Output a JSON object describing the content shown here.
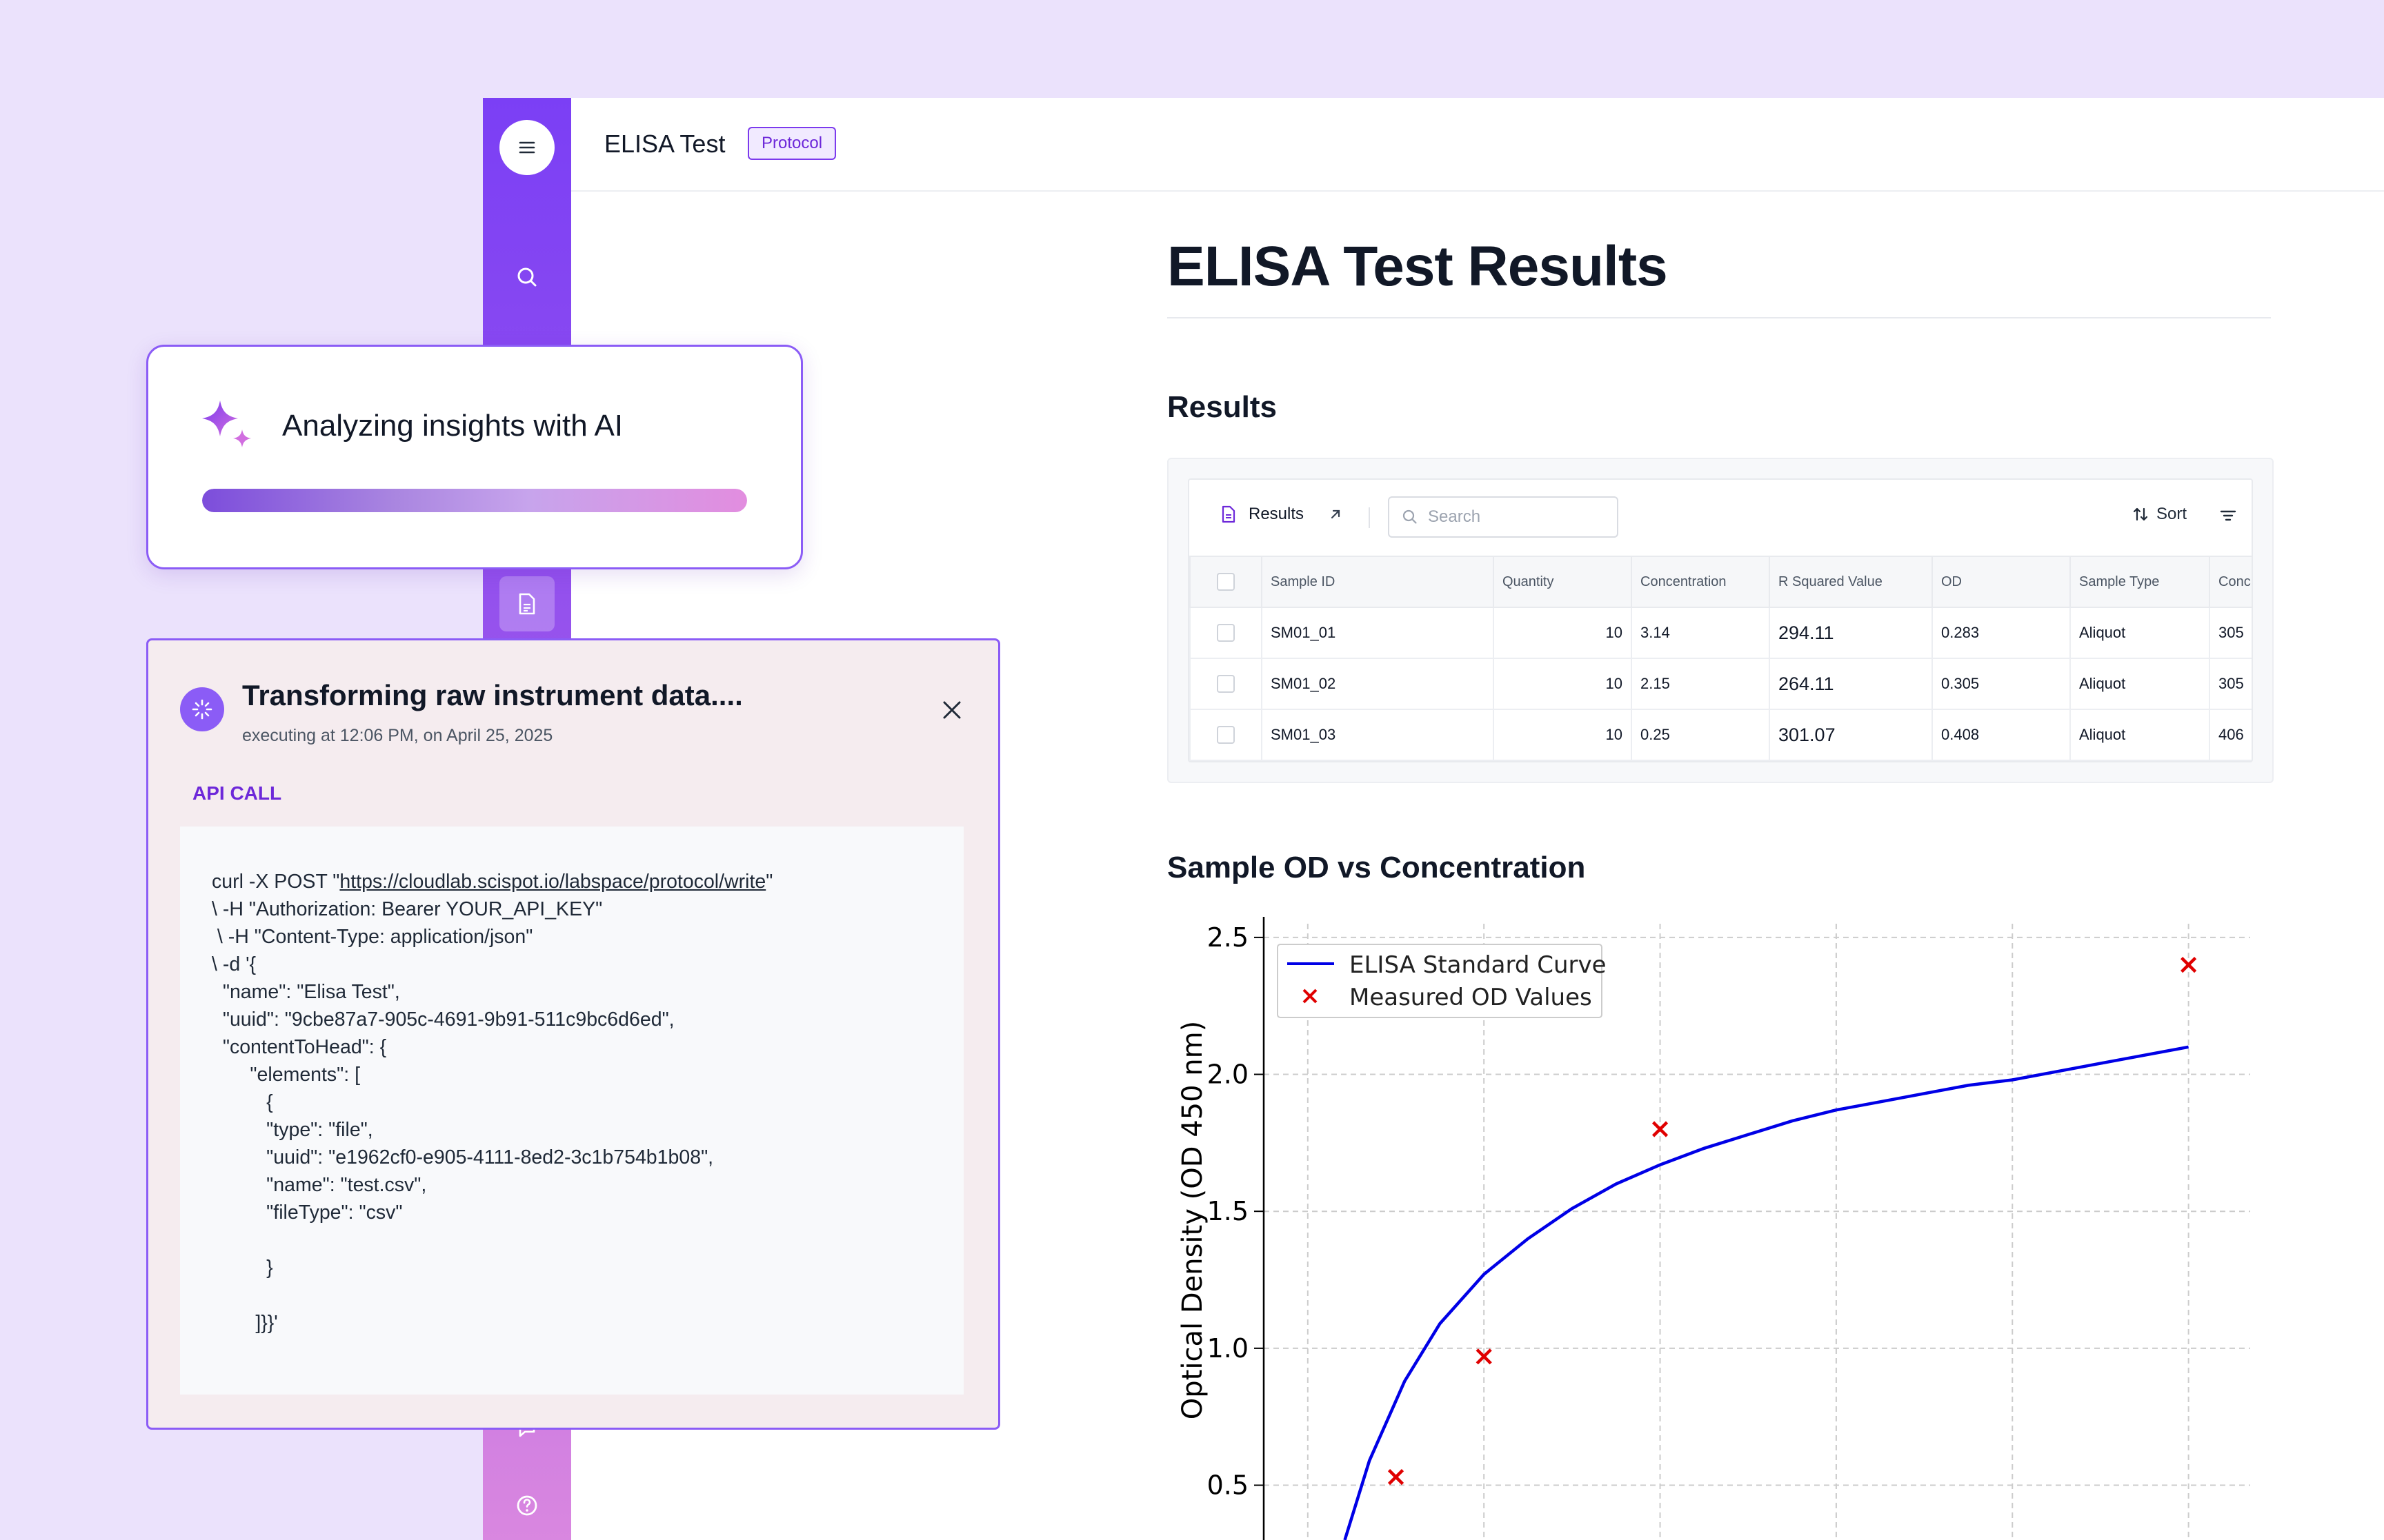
{
  "app": {
    "title": "ELISA Test",
    "badge": "Protocol",
    "accent_color": "#7c3aed"
  },
  "sidebar": {
    "items": [
      {
        "icon": "menu-icon"
      },
      {
        "icon": "search-icon"
      },
      {
        "icon": "document-icon"
      },
      {
        "icon": "chat-icon"
      },
      {
        "icon": "help-icon"
      }
    ]
  },
  "page": {
    "title": "ELISA Test Results",
    "results_heading": "Results",
    "chart_heading": "Sample OD vs Concentration"
  },
  "table": {
    "tab_label": "Results",
    "search_placeholder": "Search",
    "sort_label": "Sort",
    "columns": [
      "Sample ID",
      "Quantity",
      "Concentration",
      "R Squared Value",
      "OD",
      "Sample Type",
      "Conc"
    ],
    "rows": [
      {
        "sample_id": "SM01_01",
        "quantity": "10",
        "concentration": "3.14",
        "r_squared": "294.11",
        "od": "0.283",
        "sample_type": "Aliquot",
        "conc": "305"
      },
      {
        "sample_id": "SM01_02",
        "quantity": "10",
        "concentration": "2.15",
        "r_squared": "264.11",
        "od": "0.305",
        "sample_type": "Aliquot",
        "conc": "305"
      },
      {
        "sample_id": "SM01_03",
        "quantity": "10",
        "concentration": "0.25",
        "r_squared": "301.07",
        "od": "0.408",
        "sample_type": "Aliquot",
        "conc": "406"
      }
    ]
  },
  "chart_data": {
    "type": "line",
    "ylabel": "Optical Density (OD 450 nm)",
    "xlabel": "",
    "ylim": [
      0.3,
      2.55
    ],
    "xlim": [
      0,
      28
    ],
    "y_ticks": [
      "0.5",
      "1.0",
      "1.5",
      "2.0",
      "2.5"
    ],
    "x_gridlines": [
      1.25,
      6.25,
      11.25,
      16.25,
      21.25,
      26.25
    ],
    "grid": true,
    "legend_position": "top-left",
    "series": [
      {
        "name": "ELISA Standard Curve",
        "kind": "line",
        "color": "#0000e6",
        "x": [
          2.3,
          3,
          4,
          5,
          6.25,
          7.5,
          8.75,
          10,
          11.25,
          12.5,
          13.75,
          15,
          16.25,
          17.5,
          18.75,
          20,
          21.25,
          22.5,
          23.75,
          25,
          26.25
        ],
        "y": [
          0.3,
          0.59,
          0.88,
          1.09,
          1.27,
          1.4,
          1.51,
          1.6,
          1.67,
          1.73,
          1.78,
          1.83,
          1.87,
          1.9,
          1.93,
          1.96,
          1.98,
          2.01,
          2.04,
          2.07,
          2.1
        ]
      },
      {
        "name": "Measured OD Values",
        "kind": "scatter",
        "color": "#e00000",
        "marker": "x",
        "x": [
          3.75,
          6.25,
          11.25,
          26.25
        ],
        "y": [
          0.53,
          0.97,
          1.8,
          2.4
        ]
      }
    ]
  },
  "ai_card": {
    "title": "Analyzing insights with AI",
    "progress": 1.0,
    "icon": "sparkle-icon"
  },
  "transform_card": {
    "title": "Transforming raw instrument data....",
    "subtitle": "executing at 12:06 PM, on April 25, 2025",
    "section_label": "API CALL",
    "code_prefix": "curl -X POST \"",
    "code_url": "https://cloudlab.scispot.io/labspace/protocol/write",
    "code_suffix": "\"",
    "code_rest": "\\ -H \"Authorization: Bearer YOUR_API_KEY\"\n \\ -H \"Content-Type: application/json\"\n\\ -d '{\n  \"name\": \"Elisa Test\",\n  \"uuid\": \"9cbe87a7-905c-4691-9b91-511c9bc6d6ed\",\n  \"contentToHead\": {\n       \"elements\": [\n          {\n          \"type\": \"file\",\n          \"uuid\": \"e1962cf0-e905-4111-8ed2-3c1b754b1b08\",\n          \"name\": \"test.csv\",\n          \"fileType\": \"csv\"\n\n          }\n\n        ]}}'"
  }
}
